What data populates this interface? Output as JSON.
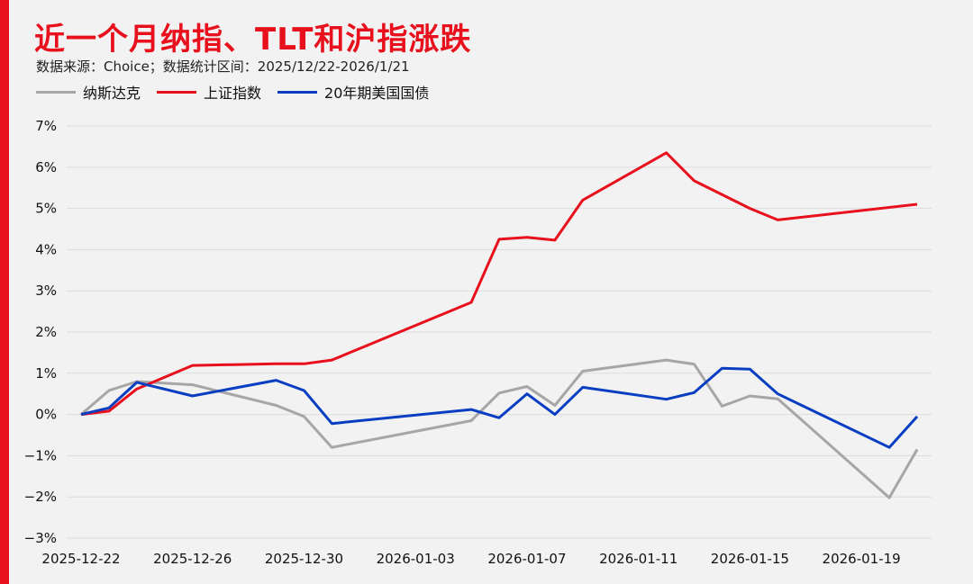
{
  "title": "近一个月纳指、TLT和沪指涨跌",
  "source": "数据来源：Choice；数据统计区间：2025/12/22-2026/1/21",
  "colors": {
    "accent": "#e8101c",
    "title": "#e8101c",
    "grid": "#dcdcdc"
  },
  "chart_data": {
    "type": "line",
    "title": "近一个月纳指、TLT和沪指涨跌",
    "xlabel": "",
    "ylabel": "",
    "ylim": [
      -3,
      7
    ],
    "y_ticks": [
      7,
      6,
      5,
      4,
      3,
      2,
      1,
      0,
      -1,
      -2,
      -3
    ],
    "y_tick_labels": [
      "7%",
      "6%",
      "5%",
      "4%",
      "3%",
      "2%",
      "1%",
      "0%",
      "−1%",
      "−2%",
      "−3%"
    ],
    "x_tick_labels": [
      "2025-12-22",
      "2025-12-26",
      "2025-12-30",
      "2026-01-03",
      "2026-01-07",
      "2026-01-11",
      "2026-01-15",
      "2026-01-19"
    ],
    "x_tick_days": [
      0,
      4,
      8,
      12,
      16,
      20,
      24,
      28
    ],
    "x_range_days": [
      0,
      30
    ],
    "grid": true,
    "legend_position": "top-left",
    "series": [
      {
        "name": "纳斯达克",
        "color": "#a6a6a6",
        "points": [
          [
            0,
            0.0
          ],
          [
            1,
            0.58
          ],
          [
            2,
            0.8
          ],
          [
            4,
            0.72
          ],
          [
            7,
            0.22
          ],
          [
            8,
            -0.05
          ],
          [
            9,
            -0.8
          ],
          [
            14,
            -0.15
          ],
          [
            15,
            0.52
          ],
          [
            16,
            0.68
          ],
          [
            17,
            0.22
          ],
          [
            18,
            1.05
          ],
          [
            21,
            1.32
          ],
          [
            22,
            1.22
          ],
          [
            23,
            0.2
          ],
          [
            24,
            0.45
          ],
          [
            25,
            0.38
          ],
          [
            29,
            -2.02
          ],
          [
            30,
            -0.85
          ]
        ]
      },
      {
        "name": "上证指数",
        "color": "#e8101c",
        "points": [
          [
            0,
            0.0
          ],
          [
            1,
            0.08
          ],
          [
            2,
            0.62
          ],
          [
            4,
            1.19
          ],
          [
            7,
            1.23
          ],
          [
            8,
            1.23
          ],
          [
            9,
            1.32
          ],
          [
            14,
            2.72
          ],
          [
            15,
            4.25
          ],
          [
            16,
            4.3
          ],
          [
            17,
            4.23
          ],
          [
            18,
            5.2
          ],
          [
            21,
            6.35
          ],
          [
            22,
            5.67
          ],
          [
            24,
            5.0
          ],
          [
            25,
            4.72
          ],
          [
            30,
            5.1
          ]
        ]
      },
      {
        "name": "20年期美国国债",
        "color": "#0a3ec2",
        "points": [
          [
            0,
            0.0
          ],
          [
            1,
            0.16
          ],
          [
            2,
            0.78
          ],
          [
            4,
            0.45
          ],
          [
            7,
            0.83
          ],
          [
            8,
            0.58
          ],
          [
            9,
            -0.22
          ],
          [
            14,
            0.12
          ],
          [
            15,
            -0.08
          ],
          [
            16,
            0.5
          ],
          [
            17,
            0.0
          ],
          [
            18,
            0.66
          ],
          [
            21,
            0.37
          ],
          [
            22,
            0.53
          ],
          [
            23,
            1.12
          ],
          [
            24,
            1.1
          ],
          [
            25,
            0.5
          ],
          [
            29,
            -0.8
          ],
          [
            30,
            -0.05
          ]
        ]
      }
    ]
  }
}
